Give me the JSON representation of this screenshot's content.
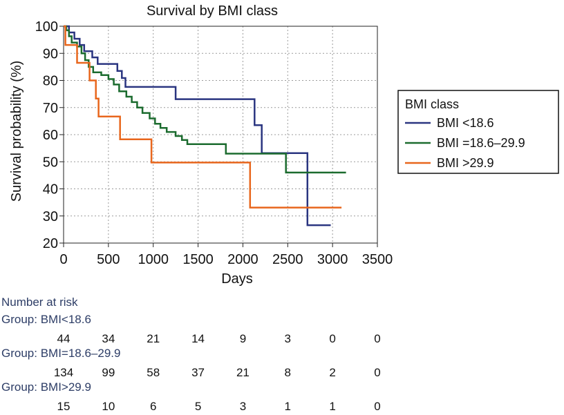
{
  "chart_data": {
    "type": "line",
    "title": "Survival by BMI class",
    "xlabel": "Days",
    "ylabel": "Survival probability (%)",
    "xlim": [
      0,
      3500
    ],
    "ylim": [
      20,
      100
    ],
    "x_ticks": [
      0,
      500,
      1000,
      1500,
      2000,
      2500,
      3000,
      3500
    ],
    "y_ticks": [
      20,
      30,
      40,
      50,
      60,
      70,
      80,
      90,
      100
    ],
    "grid": true,
    "legend": {
      "title": "BMI class",
      "placement": "right"
    },
    "series": [
      {
        "name": "BMI <18.6",
        "color": "#2a3580",
        "points": [
          [
            0,
            100
          ],
          [
            60,
            100
          ],
          [
            60,
            97.7
          ],
          [
            120,
            97.7
          ],
          [
            120,
            95.4
          ],
          [
            180,
            95.4
          ],
          [
            180,
            93.1
          ],
          [
            230,
            93.1
          ],
          [
            230,
            90.8
          ],
          [
            320,
            90.8
          ],
          [
            320,
            88.5
          ],
          [
            380,
            88.5
          ],
          [
            380,
            86.1
          ],
          [
            600,
            86.1
          ],
          [
            600,
            83.5
          ],
          [
            650,
            83.5
          ],
          [
            650,
            80.9
          ],
          [
            690,
            80.9
          ],
          [
            690,
            77.6
          ],
          [
            1250,
            77.6
          ],
          [
            1250,
            73.1
          ],
          [
            2130,
            73.1
          ],
          [
            2130,
            63.5
          ],
          [
            2210,
            63.5
          ],
          [
            2210,
            53.2
          ],
          [
            2720,
            53.2
          ],
          [
            2720,
            26.6
          ],
          [
            2980,
            26.6
          ]
        ]
      },
      {
        "name": "BMI =18.6–29.9",
        "color": "#1b6b2e",
        "points": [
          [
            0,
            100
          ],
          [
            30,
            100
          ],
          [
            30,
            98.5
          ],
          [
            60,
            98.5
          ],
          [
            60,
            96.3
          ],
          [
            90,
            96.3
          ],
          [
            90,
            94
          ],
          [
            150,
            94
          ],
          [
            150,
            92.5
          ],
          [
            200,
            92.5
          ],
          [
            200,
            90
          ],
          [
            240,
            90
          ],
          [
            240,
            87.5
          ],
          [
            280,
            87.5
          ],
          [
            280,
            85
          ],
          [
            330,
            85
          ],
          [
            330,
            83
          ],
          [
            420,
            83
          ],
          [
            420,
            82
          ],
          [
            500,
            82
          ],
          [
            500,
            80.5
          ],
          [
            560,
            80.5
          ],
          [
            560,
            78.5
          ],
          [
            620,
            78.5
          ],
          [
            620,
            76
          ],
          [
            700,
            76
          ],
          [
            700,
            74
          ],
          [
            760,
            74
          ],
          [
            760,
            72
          ],
          [
            820,
            72
          ],
          [
            820,
            70
          ],
          [
            880,
            70
          ],
          [
            880,
            68
          ],
          [
            960,
            68
          ],
          [
            960,
            66
          ],
          [
            1020,
            66
          ],
          [
            1020,
            64
          ],
          [
            1080,
            64
          ],
          [
            1080,
            62.5
          ],
          [
            1150,
            62.5
          ],
          [
            1150,
            61
          ],
          [
            1250,
            61
          ],
          [
            1250,
            59.5
          ],
          [
            1320,
            59.5
          ],
          [
            1320,
            58
          ],
          [
            1380,
            58
          ],
          [
            1380,
            56.5
          ],
          [
            1810,
            56.5
          ],
          [
            1810,
            53
          ],
          [
            2480,
            53
          ],
          [
            2480,
            46
          ],
          [
            3150,
            46
          ]
        ]
      },
      {
        "name": "BMI >29.9",
        "color": "#e8661c",
        "points": [
          [
            0,
            100
          ],
          [
            20,
            100
          ],
          [
            20,
            93.1
          ],
          [
            150,
            93.1
          ],
          [
            150,
            86.5
          ],
          [
            290,
            86.5
          ],
          [
            290,
            80
          ],
          [
            360,
            80
          ],
          [
            360,
            73.3
          ],
          [
            390,
            73.3
          ],
          [
            390,
            66.7
          ],
          [
            630,
            66.7
          ],
          [
            630,
            58.3
          ],
          [
            980,
            58.3
          ],
          [
            980,
            49.7
          ],
          [
            2080,
            49.7
          ],
          [
            2080,
            33.1
          ],
          [
            3100,
            33.1
          ]
        ]
      }
    ]
  },
  "risk_table": {
    "title": "Number at risk",
    "groups": [
      {
        "label": "Group: BMI<18.6",
        "counts": [
          "44",
          "34",
          "21",
          "14",
          "9",
          "3",
          "0",
          "0"
        ]
      },
      {
        "label": "Group: BMI=18.6–29.9",
        "counts": [
          "134",
          "99",
          "58",
          "37",
          "21",
          "8",
          "2",
          "0"
        ]
      },
      {
        "label": "Group: BMI>29.9",
        "counts": [
          "15",
          "10",
          "6",
          "5",
          "3",
          "1",
          "1",
          "0"
        ]
      }
    ]
  }
}
